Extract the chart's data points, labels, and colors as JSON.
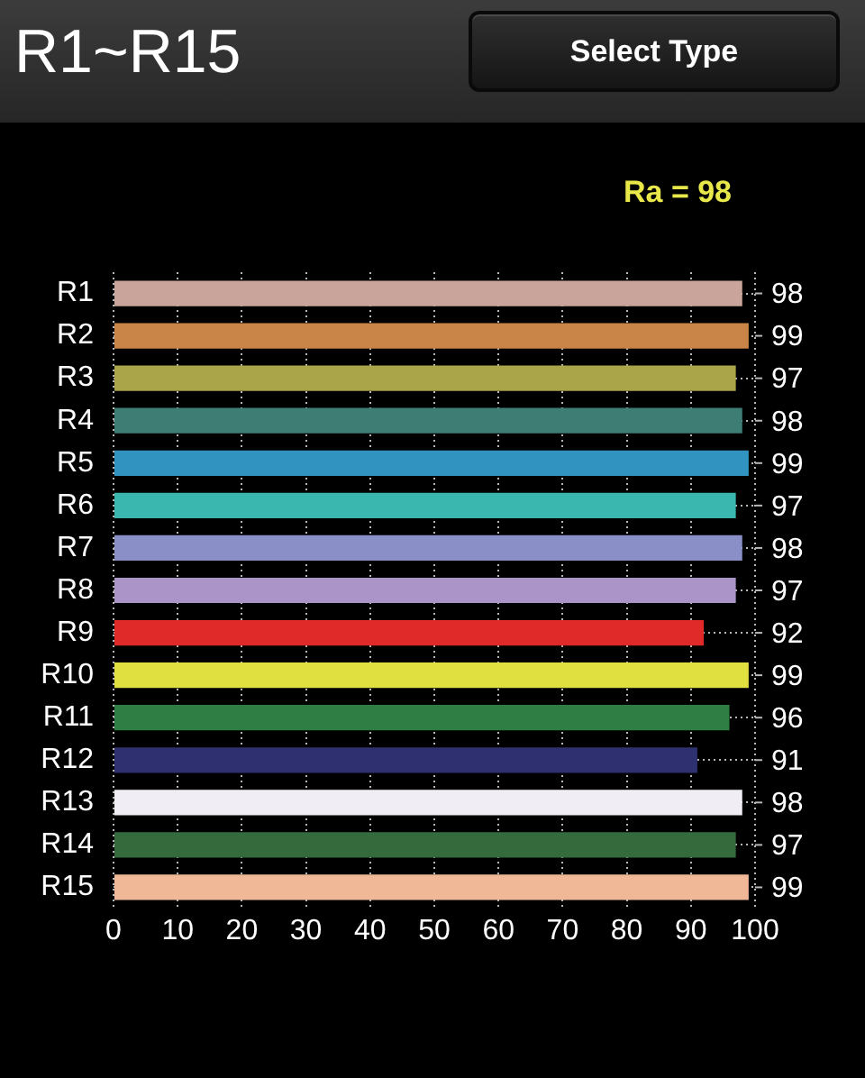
{
  "chart_data": {
    "type": "bar",
    "orientation": "horizontal",
    "title": "R1~R15",
    "annotations": [
      "Select Type",
      "Ra = 98"
    ],
    "categories": [
      "R1",
      "R2",
      "R3",
      "R4",
      "R5",
      "R6",
      "R7",
      "R8",
      "R9",
      "R10",
      "R11",
      "R12",
      "R13",
      "R14",
      "R15"
    ],
    "values": [
      98,
      99,
      97,
      98,
      99,
      97,
      98,
      97,
      92,
      99,
      96,
      91,
      98,
      97,
      99
    ],
    "colors": [
      "#c9a49a",
      "#c98448",
      "#aaa548",
      "#3d7d74",
      "#3193c0",
      "#3ab8b0",
      "#8b8fc8",
      "#ab94c8",
      "#e02a2a",
      "#e0e040",
      "#2f7f45",
      "#2e3070",
      "#f0eef4",
      "#356a3c",
      "#f0b896"
    ],
    "xlim": [
      0,
      100
    ],
    "xticks": [
      0,
      10,
      20,
      30,
      40,
      50,
      60,
      70,
      80,
      90,
      100
    ],
    "grid": true,
    "data_labels": true
  }
}
